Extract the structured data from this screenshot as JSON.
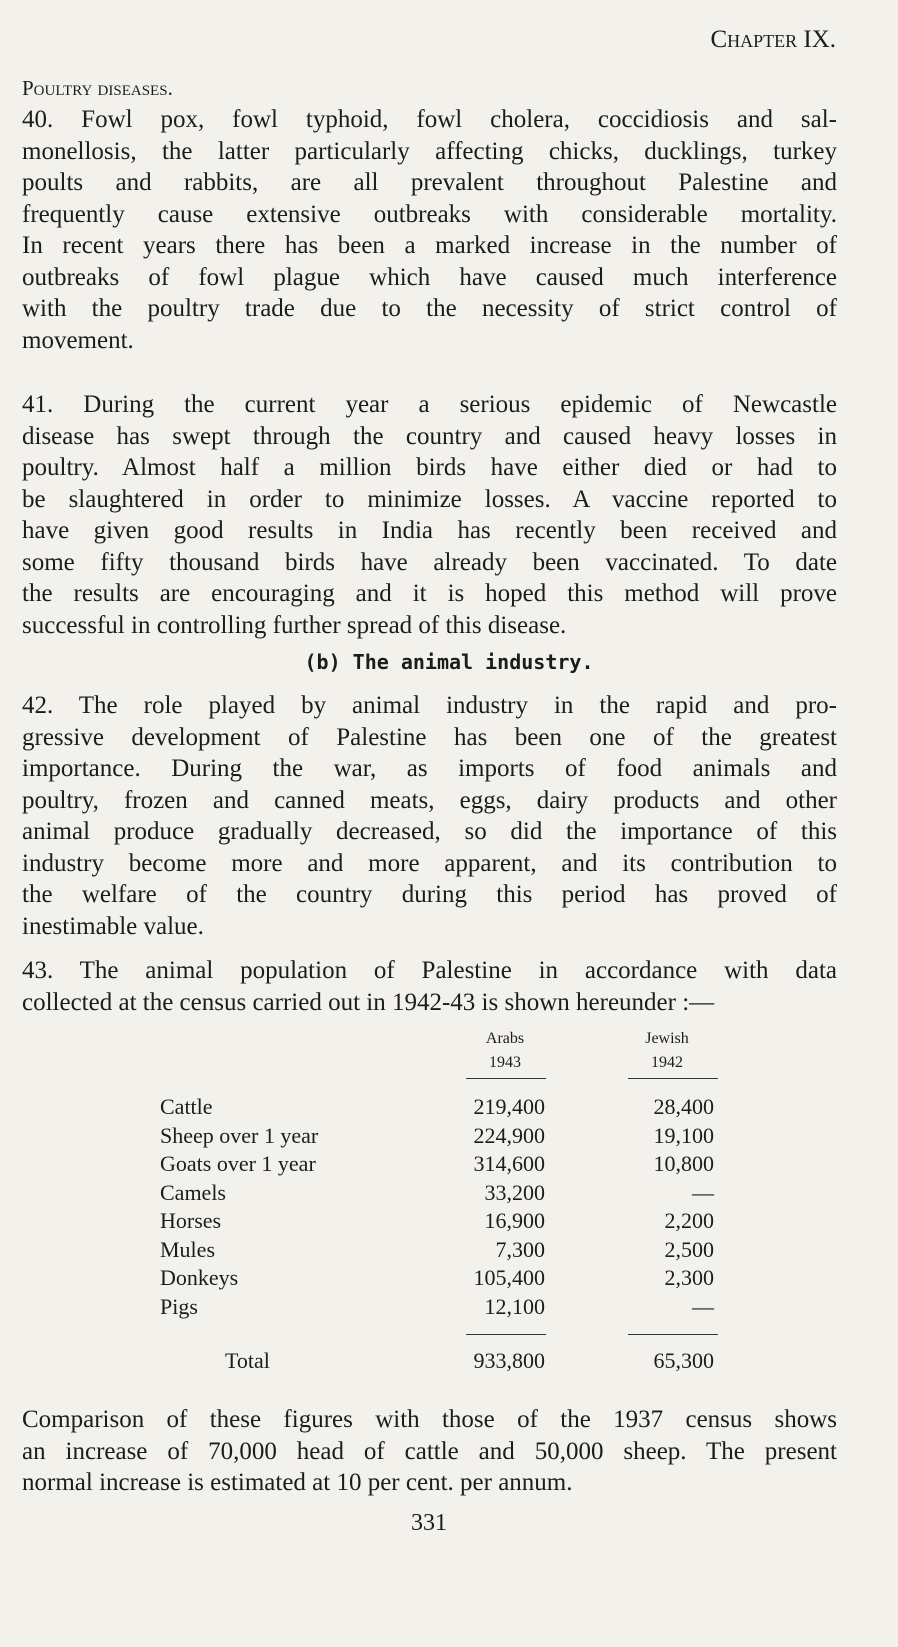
{
  "header": {
    "chapter": "Chapter IX."
  },
  "section_title": "Poultry diseases.",
  "paragraphs_a": [
    [
      "40. Fowl pox, fowl typhoid, fowl cholera, coccidiosis and sal-",
      "monellosis, the latter particularly affecting chicks, ducklings, turkey",
      "poults and rabbits, are all prevalent throughout Palestine and",
      "frequently cause extensive outbreaks with considerable mortality.",
      "In recent years there has been a marked increase in the number of",
      "outbreaks of fowl plague which have caused much interference",
      "with the poultry trade due to the necessity of strict control of",
      "movement."
    ],
    [
      "41. During the current year a serious epidemic of Newcastle",
      "disease has swept through the country and caused heavy losses in",
      "poultry. Almost half a million birds have either died or had to",
      "be slaughtered in order to minimize losses. A vaccine reported to",
      "have given good results in India has recently been received and",
      "some fifty thousand birds have already been vaccinated. To date",
      "the results are encouraging and it is hoped this method will prove",
      "successful in controlling further spread of this disease."
    ]
  ],
  "subheading": "(b) The animal industry.",
  "paragraphs_b": [
    [
      "42. The role played by animal industry in the rapid and pro-",
      "gressive development of Palestine has been one of the greatest",
      "importance. During the war, as imports of food animals and",
      "poultry, frozen and canned meats, eggs, dairy products and other",
      "animal produce gradually decreased, so did the importance of this",
      "industry become more and more apparent, and its contribution to",
      "the welfare of the country during this period has proved of",
      "inestimable value."
    ],
    [
      "43. The animal population of Palestine in accordance with data",
      "collected at the census carried out in 1942-43 is shown hereunder :—"
    ]
  ],
  "table": {
    "columns": [
      [
        "Arabs",
        "1943"
      ],
      [
        "Jewish",
        "1942"
      ]
    ],
    "rows": [
      [
        "Cattle",
        "219,400",
        "28,400"
      ],
      [
        "Sheep over 1 year",
        "224,900",
        "19,100"
      ],
      [
        "Goats over 1 year",
        "314,600",
        "10,800"
      ],
      [
        "Camels",
        "33,200",
        "—"
      ],
      [
        "Horses",
        "16,900",
        "2,200"
      ],
      [
        "Mules",
        "7,300",
        "2,500"
      ],
      [
        "Donkeys",
        "105,400",
        "2,300"
      ],
      [
        "Pigs",
        "12,100",
        "—"
      ]
    ],
    "total": [
      "Total",
      "933,800",
      "65,300"
    ]
  },
  "closing": [
    "Comparison of these figures with those of the 1937 census shows",
    "an increase of 70,000 head of cattle and 50,000 sheep. The present",
    "normal increase is estimated at 10 per cent. per annum."
  ],
  "page_number": "331"
}
